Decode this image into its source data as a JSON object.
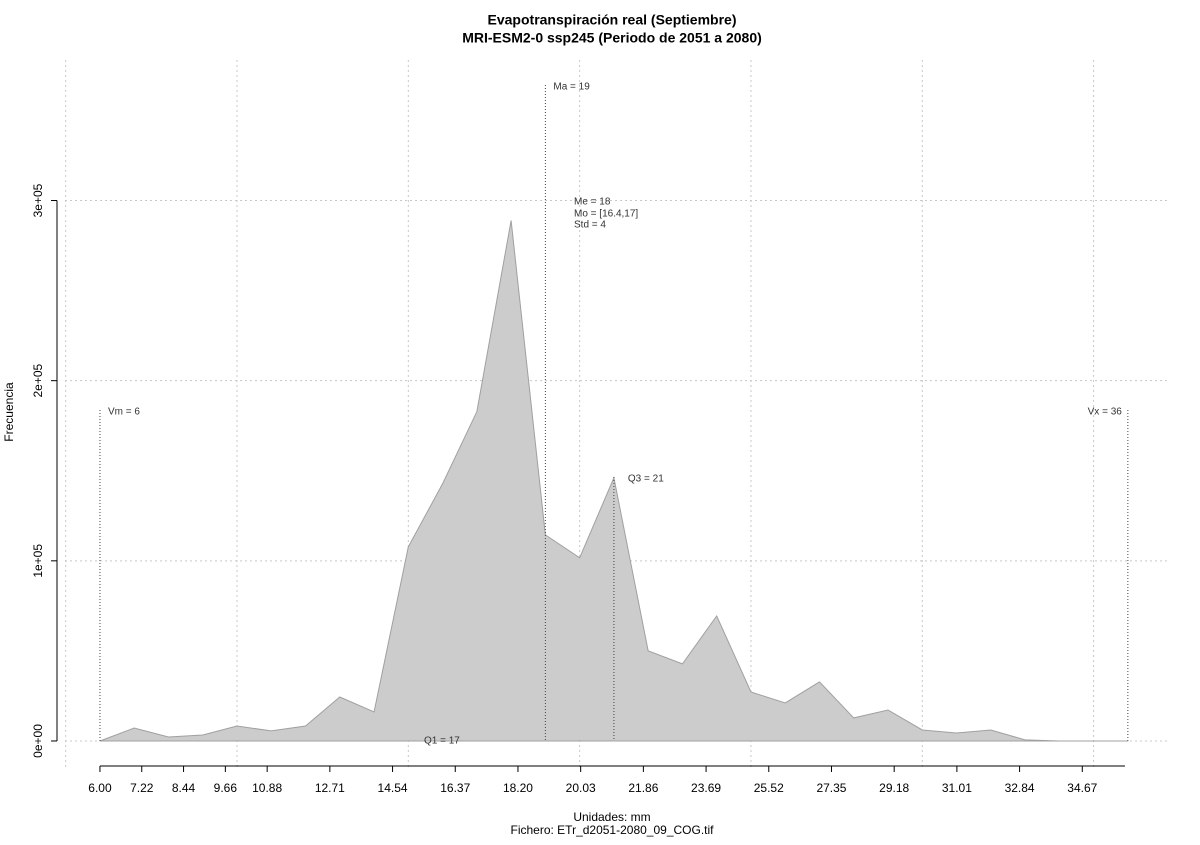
{
  "chart_data": {
    "type": "area",
    "title": "Evapotranspiración real (Septiembre)",
    "subtitle": "MRI-ESM2-0 ssp245 (Periodo de 2051 a 2080)",
    "x_label": "Unidades: mm",
    "footer": "Fichero: ETr_d2051-2080_09_COG.tif",
    "y_label": "Frecuencia",
    "x": [
      6,
      7,
      8,
      9,
      10,
      11,
      12,
      13,
      14,
      15,
      16,
      17,
      18,
      19,
      20,
      21,
      22,
      23,
      24,
      25,
      26,
      27,
      28,
      29,
      30,
      31,
      32,
      33,
      34,
      35,
      36
    ],
    "values": [
      0,
      7200,
      2200,
      3300,
      8300,
      5600,
      8300,
      24400,
      16100,
      107800,
      142800,
      182800,
      288900,
      114400,
      101700,
      146100,
      50000,
      42800,
      69400,
      27200,
      21100,
      32800,
      12800,
      17200,
      6100,
      4400,
      6100,
      600,
      0,
      0,
      0
    ],
    "color": "#cccccc",
    "xlim": [
      4.98,
      37.23
    ],
    "ylim": [
      -15000,
      378000
    ],
    "xticks": [
      {
        "value": 6,
        "label": "6.00"
      },
      {
        "value": 7.22,
        "label": "7.22"
      },
      {
        "value": 8.44,
        "label": "8.44"
      },
      {
        "value": 9.66,
        "label": "9.66"
      },
      {
        "value": 10.88,
        "label": "10.88"
      },
      {
        "value": 12.71,
        "label": "12.71"
      },
      {
        "value": 14.54,
        "label": "14.54"
      },
      {
        "value": 16.37,
        "label": "16.37"
      },
      {
        "value": 18.2,
        "label": "18.20"
      },
      {
        "value": 20.03,
        "label": "20.03"
      },
      {
        "value": 21.86,
        "label": "21.86"
      },
      {
        "value": 23.69,
        "label": "23.69"
      },
      {
        "value": 25.52,
        "label": "25.52"
      },
      {
        "value": 27.35,
        "label": "27.35"
      },
      {
        "value": 29.18,
        "label": "29.18"
      },
      {
        "value": 31.01,
        "label": "31.01"
      },
      {
        "value": 32.84,
        "label": "32.84"
      },
      {
        "value": 34.67,
        "label": "34.67"
      }
    ],
    "yticks": [
      {
        "value": 0,
        "label": "0e+00"
      },
      {
        "value": 100000,
        "label": "1e+05"
      },
      {
        "value": 200000,
        "label": "2e+05"
      },
      {
        "value": 300000,
        "label": "3e+05"
      }
    ],
    "xgrid": [
      5,
      10,
      15,
      20,
      25,
      30,
      35
    ],
    "grid": true,
    "markers": [
      {
        "label": "Vm = 6",
        "x": 6
      },
      {
        "label": "Ma = 19",
        "x": 19
      },
      {
        "label": "Q3 = 21",
        "x": 21
      },
      {
        "label": "Vx = 36",
        "x": 36
      }
    ],
    "annotations": [
      "Q1 = 17",
      "Me = 18",
      "Mo = [16.4,17]",
      "Std = 4"
    ]
  }
}
